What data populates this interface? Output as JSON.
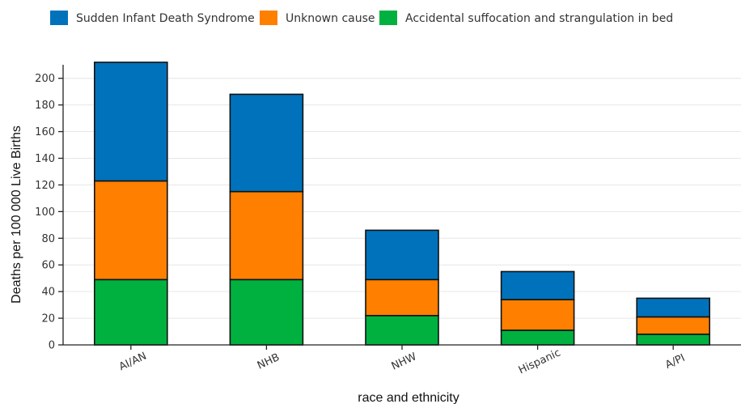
{
  "chart_data": {
    "type": "bar",
    "stacked": true,
    "categories": [
      "AI/AN",
      "NHB",
      "NHW",
      "Hispanic",
      "A/PI"
    ],
    "series": [
      {
        "name": "Accidental suffocation and strangulation in bed",
        "color": "#00b140",
        "values": [
          49,
          49,
          22,
          11,
          8
        ]
      },
      {
        "name": "Unknown cause",
        "color": "#ff7f00",
        "values": [
          74,
          66,
          27,
          23,
          13
        ]
      },
      {
        "name": "Sudden Infant Death Syndrome",
        "color": "#0072bc",
        "values": [
          89,
          73,
          37,
          21,
          14
        ]
      }
    ],
    "legend_order": [
      "Sudden Infant Death Syndrome",
      "Unknown cause",
      "Accidental suffocation and strangulation in bed"
    ],
    "xlabel": "race and ethnicity",
    "ylabel": "Deaths per 100 000 Live Births",
    "ylim": [
      0,
      215
    ],
    "yticks": [
      0,
      20,
      40,
      60,
      80,
      100,
      120,
      140,
      160,
      180,
      200
    ],
    "grid": true,
    "legend_position": "top-left"
  }
}
